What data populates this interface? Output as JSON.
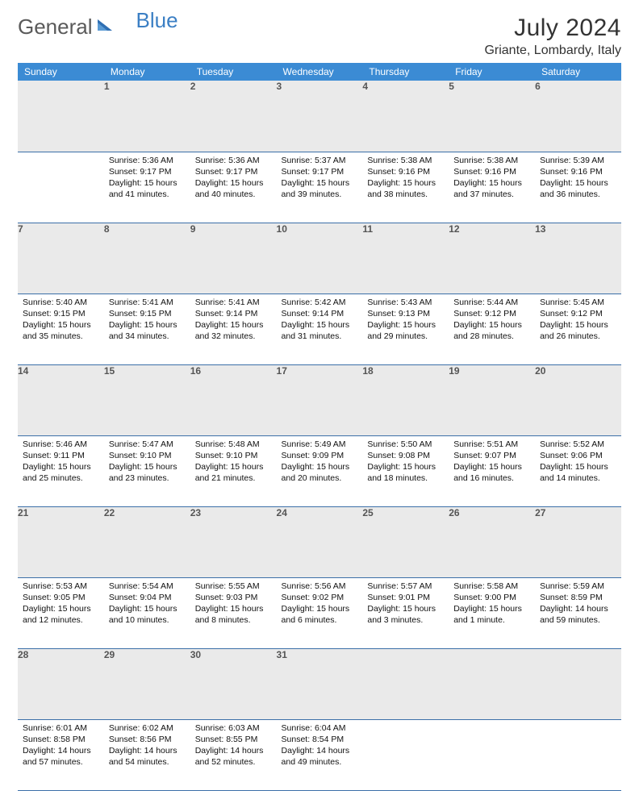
{
  "logo": {
    "text1": "General",
    "text2": "Blue"
  },
  "title": "July 2024",
  "location": "Griante, Lombardy, Italy",
  "colors": {
    "header_bg": "#3b8bd4",
    "header_text": "#ffffff",
    "daynum_bg": "#eaeaea",
    "daynum_text": "#555555",
    "row_border": "#3b6fa8",
    "logo_gray": "#5a5a5a",
    "logo_blue": "#3b7fc4",
    "body_text": "#111111",
    "page_bg": "#ffffff"
  },
  "weekdays": [
    "Sunday",
    "Monday",
    "Tuesday",
    "Wednesday",
    "Thursday",
    "Friday",
    "Saturday"
  ],
  "weeks": [
    [
      null,
      {
        "n": "1",
        "sr": "5:36 AM",
        "ss": "9:17 PM",
        "dl": "15 hours and 41 minutes."
      },
      {
        "n": "2",
        "sr": "5:36 AM",
        "ss": "9:17 PM",
        "dl": "15 hours and 40 minutes."
      },
      {
        "n": "3",
        "sr": "5:37 AM",
        "ss": "9:17 PM",
        "dl": "15 hours and 39 minutes."
      },
      {
        "n": "4",
        "sr": "5:38 AM",
        "ss": "9:16 PM",
        "dl": "15 hours and 38 minutes."
      },
      {
        "n": "5",
        "sr": "5:38 AM",
        "ss": "9:16 PM",
        "dl": "15 hours and 37 minutes."
      },
      {
        "n": "6",
        "sr": "5:39 AM",
        "ss": "9:16 PM",
        "dl": "15 hours and 36 minutes."
      }
    ],
    [
      {
        "n": "7",
        "sr": "5:40 AM",
        "ss": "9:15 PM",
        "dl": "15 hours and 35 minutes."
      },
      {
        "n": "8",
        "sr": "5:41 AM",
        "ss": "9:15 PM",
        "dl": "15 hours and 34 minutes."
      },
      {
        "n": "9",
        "sr": "5:41 AM",
        "ss": "9:14 PM",
        "dl": "15 hours and 32 minutes."
      },
      {
        "n": "10",
        "sr": "5:42 AM",
        "ss": "9:14 PM",
        "dl": "15 hours and 31 minutes."
      },
      {
        "n": "11",
        "sr": "5:43 AM",
        "ss": "9:13 PM",
        "dl": "15 hours and 29 minutes."
      },
      {
        "n": "12",
        "sr": "5:44 AM",
        "ss": "9:12 PM",
        "dl": "15 hours and 28 minutes."
      },
      {
        "n": "13",
        "sr": "5:45 AM",
        "ss": "9:12 PM",
        "dl": "15 hours and 26 minutes."
      }
    ],
    [
      {
        "n": "14",
        "sr": "5:46 AM",
        "ss": "9:11 PM",
        "dl": "15 hours and 25 minutes."
      },
      {
        "n": "15",
        "sr": "5:47 AM",
        "ss": "9:10 PM",
        "dl": "15 hours and 23 minutes."
      },
      {
        "n": "16",
        "sr": "5:48 AM",
        "ss": "9:10 PM",
        "dl": "15 hours and 21 minutes."
      },
      {
        "n": "17",
        "sr": "5:49 AM",
        "ss": "9:09 PM",
        "dl": "15 hours and 20 minutes."
      },
      {
        "n": "18",
        "sr": "5:50 AM",
        "ss": "9:08 PM",
        "dl": "15 hours and 18 minutes."
      },
      {
        "n": "19",
        "sr": "5:51 AM",
        "ss": "9:07 PM",
        "dl": "15 hours and 16 minutes."
      },
      {
        "n": "20",
        "sr": "5:52 AM",
        "ss": "9:06 PM",
        "dl": "15 hours and 14 minutes."
      }
    ],
    [
      {
        "n": "21",
        "sr": "5:53 AM",
        "ss": "9:05 PM",
        "dl": "15 hours and 12 minutes."
      },
      {
        "n": "22",
        "sr": "5:54 AM",
        "ss": "9:04 PM",
        "dl": "15 hours and 10 minutes."
      },
      {
        "n": "23",
        "sr": "5:55 AM",
        "ss": "9:03 PM",
        "dl": "15 hours and 8 minutes."
      },
      {
        "n": "24",
        "sr": "5:56 AM",
        "ss": "9:02 PM",
        "dl": "15 hours and 6 minutes."
      },
      {
        "n": "25",
        "sr": "5:57 AM",
        "ss": "9:01 PM",
        "dl": "15 hours and 3 minutes."
      },
      {
        "n": "26",
        "sr": "5:58 AM",
        "ss": "9:00 PM",
        "dl": "15 hours and 1 minute."
      },
      {
        "n": "27",
        "sr": "5:59 AM",
        "ss": "8:59 PM",
        "dl": "14 hours and 59 minutes."
      }
    ],
    [
      {
        "n": "28",
        "sr": "6:01 AM",
        "ss": "8:58 PM",
        "dl": "14 hours and 57 minutes."
      },
      {
        "n": "29",
        "sr": "6:02 AM",
        "ss": "8:56 PM",
        "dl": "14 hours and 54 minutes."
      },
      {
        "n": "30",
        "sr": "6:03 AM",
        "ss": "8:55 PM",
        "dl": "14 hours and 52 minutes."
      },
      {
        "n": "31",
        "sr": "6:04 AM",
        "ss": "8:54 PM",
        "dl": "14 hours and 49 minutes."
      },
      null,
      null,
      null
    ]
  ],
  "labels": {
    "sunrise": "Sunrise:",
    "sunset": "Sunset:",
    "daylight": "Daylight:"
  }
}
